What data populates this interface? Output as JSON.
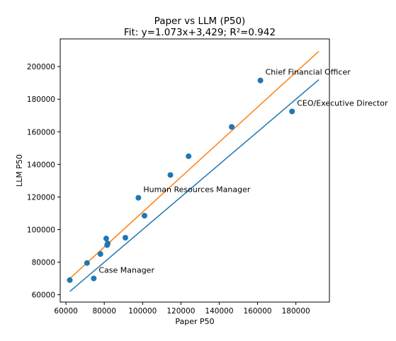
{
  "chart_data": {
    "type": "scatter",
    "title": "Paper vs LLM (P50)",
    "subtitle": "Fit: y=1.073x+3,429; R²=0.942",
    "xlabel": "Paper P50",
    "ylabel": "LLM P50",
    "xlim": [
      57000,
      197500
    ],
    "ylim": [
      55500,
      217000
    ],
    "xticks": [
      60000,
      80000,
      100000,
      120000,
      140000,
      160000,
      180000
    ],
    "yticks": [
      60000,
      80000,
      100000,
      120000,
      140000,
      160000,
      180000,
      200000
    ],
    "grid": false,
    "points": [
      {
        "x": 62000,
        "y": 69000
      },
      {
        "x": 71000,
        "y": 79500
      },
      {
        "x": 74500,
        "y": 70000
      },
      {
        "x": 78000,
        "y": 85000
      },
      {
        "x": 81000,
        "y": 94500
      },
      {
        "x": 81500,
        "y": 90500
      },
      {
        "x": 81800,
        "y": 91500
      },
      {
        "x": 91000,
        "y": 95000
      },
      {
        "x": 97800,
        "y": 119500
      },
      {
        "x": 101000,
        "y": 108500
      },
      {
        "x": 114500,
        "y": 133500
      },
      {
        "x": 124000,
        "y": 145000
      },
      {
        "x": 146500,
        "y": 163000
      },
      {
        "x": 161500,
        "y": 191500
      },
      {
        "x": 178000,
        "y": 172500
      }
    ],
    "annotations": [
      {
        "text": "Chief Financial Officer",
        "x": 161500,
        "y": 191500
      },
      {
        "text": "CEO/Executive Director",
        "x": 178000,
        "y": 172500
      },
      {
        "text": "Human Resources Manager",
        "x": 97800,
        "y": 119500
      },
      {
        "text": "Case Manager",
        "x": 74500,
        "y": 70000
      }
    ],
    "lines": [
      {
        "role": "identity",
        "color": "#1f77b4",
        "from": [
          62000,
          62000
        ],
        "to": [
          192000,
          192000
        ]
      },
      {
        "role": "fit",
        "color": "#ff7f0e",
        "slope": 1.073,
        "intercept": 3429,
        "from_x": 62000,
        "to_x": 192000
      }
    ],
    "colors": {
      "points": "#1f77b4",
      "identity": "#1f77b4",
      "fit": "#ff7f0e"
    }
  }
}
